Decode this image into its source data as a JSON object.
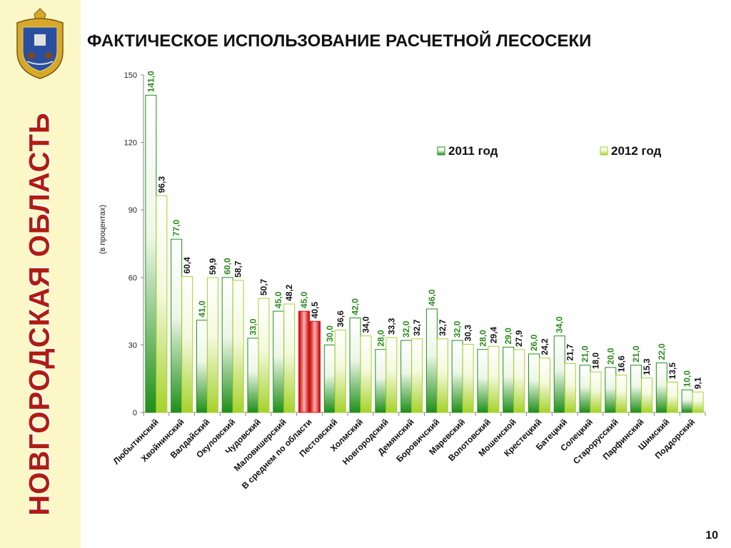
{
  "slide": {
    "title": "ФАКТИЧЕСКОЕ ИСПОЛЬЗОВАНИЕ РАСЧЕТНОЙ ЛЕСОСЕКИ",
    "region": "НОВГОРОДСКАЯ ОБЛАСТЬ",
    "page_number": "10"
  },
  "colors": {
    "sidebar_bg": "#fbf7c6",
    "region_text": "#b01c12",
    "series_2011": "#1f8f1a",
    "series_2012": "#a6d22a",
    "highlight": "#e01010",
    "label_2011": "#2a8a1a",
    "label_2012": "#111111"
  },
  "chart_data": {
    "type": "bar",
    "ylabel": "(в процентах)",
    "ylim": [
      0,
      150
    ],
    "yticks": [
      "0",
      "30",
      "60",
      "90",
      "120",
      "150"
    ],
    "legend": {
      "placement": "top-right"
    },
    "grid": false,
    "highlight_category": "В среднем по области",
    "categories": [
      "Любытинский",
      "Хвойнинский",
      "Валдайский",
      "Окуловский",
      "Чудовский",
      "Маловишерский",
      "В среднем по области",
      "Пестовский",
      "Холмский",
      "Новгородский",
      "Демянский",
      "Боровичский",
      "Маревский",
      "Волотовский",
      "Мошенской",
      "Крестецкий",
      "Батецкий",
      "Солецкий",
      "Старорусский",
      "Парфинский",
      "Шимский",
      "Поддорский"
    ],
    "series": [
      {
        "name": "2011 год",
        "values": [
          141.0,
          77.0,
          41.0,
          60.0,
          33.0,
          45.0,
          45.0,
          30.0,
          42.0,
          28.0,
          32.0,
          46.0,
          32.0,
          28.0,
          29.0,
          26.0,
          34.0,
          21.0,
          20.0,
          21.0,
          22.0,
          10.0
        ],
        "labels": [
          "141,0",
          "77,0",
          "41,0",
          "60,0",
          "33,0",
          "45,0",
          "45,0",
          "30,0",
          "42,0",
          "28,0",
          "32,0",
          "46,0",
          "32,0",
          "28,0",
          "29,0",
          "26,0",
          "34,0",
          "21,0",
          "20,0",
          "21,0",
          "22,0",
          "10,0"
        ]
      },
      {
        "name": "2012 год",
        "values": [
          96.3,
          60.4,
          59.9,
          58.7,
          50.7,
          48.2,
          40.5,
          36.6,
          34.0,
          33.3,
          32.7,
          32.7,
          30.3,
          29.4,
          27.9,
          24.2,
          21.7,
          18.0,
          16.6,
          15.3,
          13.5,
          9.1
        ],
        "labels": [
          "96,3",
          "60,4",
          "59,9",
          "58,7",
          "50,7",
          "48,2",
          "40,5",
          "36,6",
          "34,0",
          "33,3",
          "32,7",
          "32,7",
          "30,3",
          "29,4",
          "27,9",
          "24,2",
          "21,7",
          "18,0",
          "16,6",
          "15,3",
          "13,5",
          "9,1"
        ]
      }
    ]
  }
}
